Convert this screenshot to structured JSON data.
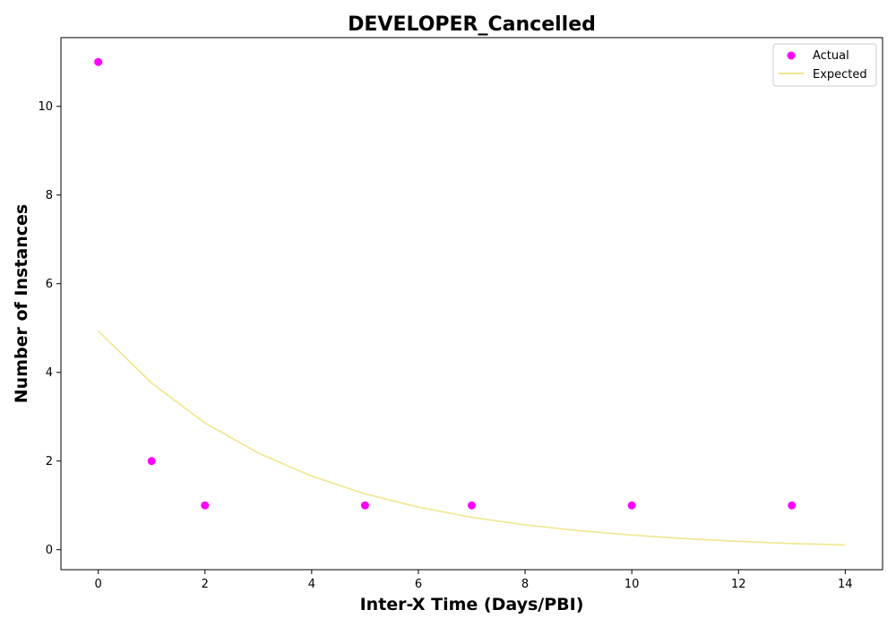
{
  "chart_data": {
    "type": "scatter",
    "title": "DEVELOPER_Cancelled",
    "xlabel": "Inter-X Time (Days/PBI)",
    "ylabel": "Number of Instances",
    "xlim": [
      -0.7,
      14.7
    ],
    "ylim": [
      -0.45,
      11.55
    ],
    "xticks": [
      0,
      2,
      4,
      6,
      8,
      10,
      12,
      14
    ],
    "yticks": [
      0,
      2,
      4,
      6,
      8,
      10
    ],
    "grid": false,
    "legend_position": "top-right",
    "series": [
      {
        "name": "Actual",
        "kind": "scatter",
        "color": "#ff00ff",
        "x": [
          0,
          1,
          2,
          5,
          7,
          10,
          13
        ],
        "y": [
          11,
          2,
          1,
          1,
          1,
          1,
          1
        ]
      },
      {
        "name": "Expected",
        "kind": "line",
        "color": "#f0e68c",
        "x": [
          0,
          1,
          2,
          3,
          4,
          5,
          6,
          7,
          8,
          9,
          10,
          11,
          12,
          13,
          14
        ],
        "y": [
          4.93,
          3.76,
          2.86,
          2.18,
          1.66,
          1.26,
          0.96,
          0.73,
          0.56,
          0.43,
          0.33,
          0.25,
          0.19,
          0.14,
          0.11
        ]
      }
    ]
  }
}
